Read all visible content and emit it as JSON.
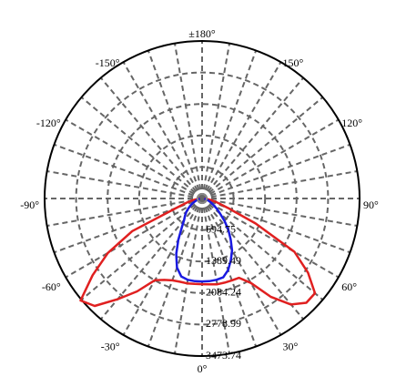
{
  "chart_data": {
    "type": "polar",
    "theta": [
      -90,
      -85,
      -80,
      -75,
      -70,
      -65,
      -60,
      -55,
      -50,
      -45,
      -40,
      -35,
      -30,
      -25,
      -20,
      -15,
      -10,
      -5,
      0,
      5,
      10,
      15,
      20,
      25,
      30,
      35,
      40,
      45,
      50,
      55,
      60,
      65,
      70,
      75,
      80,
      85,
      90
    ],
    "series": [
      {
        "color": "#e02020",
        "values": [
          50,
          100,
          200,
          350,
          600,
          1700,
          2400,
          2950,
          3500,
          3350,
          2900,
          2500,
          2080,
          1980,
          1920,
          1900,
          1900,
          1890,
          1890,
          1900,
          1920,
          1920,
          1920,
          1930,
          2150,
          2650,
          3050,
          3250,
          3250,
          2850,
          2350,
          1300,
          600,
          350,
          200,
          100,
          50
        ]
      },
      {
        "color": "#1a1ae0",
        "values": [
          50,
          60,
          80,
          110,
          150,
          210,
          280,
          360,
          450,
          530,
          620,
          780,
          1050,
          1350,
          1620,
          1780,
          1820,
          1830,
          1830,
          1830,
          1820,
          1800,
          1680,
          1500,
          1320,
          1100,
          900,
          700,
          520,
          400,
          300,
          220,
          160,
          110,
          80,
          60,
          50
        ]
      }
    ],
    "rlim": [
      0,
      3473.74
    ],
    "rticks": [
      694.75,
      1389.49,
      2084.24,
      2778.99,
      3473.74
    ],
    "thetaticks": [
      {
        "value": 180,
        "label": "±180°"
      },
      {
        "value": 150,
        "label": "150°"
      },
      {
        "value": 120,
        "label": "120°"
      },
      {
        "value": 90,
        "label": "90°"
      },
      {
        "value": 60,
        "label": "60°"
      },
      {
        "value": 30,
        "label": "30°"
      },
      {
        "value": 0,
        "label": "0°"
      },
      {
        "value": -30,
        "label": "-30°"
      },
      {
        "value": -60,
        "label": "-60°"
      },
      {
        "value": -90,
        "label": "-90°"
      },
      {
        "value": -120,
        "label": "-120°"
      },
      {
        "value": -150,
        "label": "-150°"
      }
    ],
    "theta_grid_step": 10,
    "grid": true
  }
}
